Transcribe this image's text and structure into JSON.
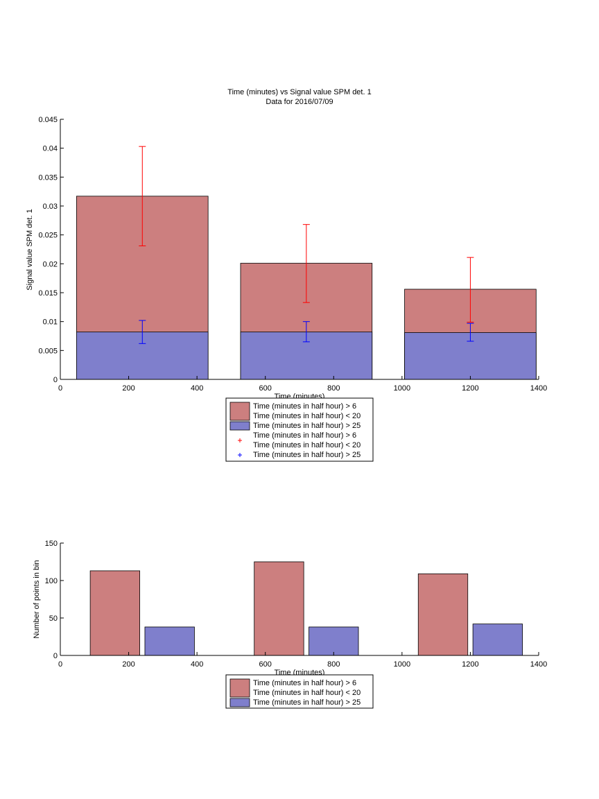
{
  "colors": {
    "bar_red": "#cc7f7f",
    "bar_blue": "#7f7fcc",
    "err_red": "#ff0000",
    "err_blue": "#0000ff",
    "edge": "#000000"
  },
  "chart_data": [
    {
      "type": "bar",
      "title": "Time (minutes) vs Signal value SPM det. 1",
      "subtitle": "Data for 2016/07/09",
      "xlabel": "Time (minutes)",
      "ylabel": "Signal value SPM det. 1",
      "xlim": [
        0,
        1400
      ],
      "ylim": [
        0,
        0.045
      ],
      "xticks": [
        0,
        200,
        400,
        600,
        800,
        1000,
        1200,
        1400
      ],
      "yticks": [
        0,
        0.005,
        0.01,
        0.015,
        0.02,
        0.025,
        0.03,
        0.035,
        0.04,
        0.045
      ],
      "xtick_labels": [
        "0",
        "200",
        "400",
        "600",
        "800",
        "1000",
        "1200",
        "1400"
      ],
      "ytick_labels": [
        "0",
        "0.005",
        "0.01",
        "0.015",
        "0.02",
        "0.025",
        "0.03",
        "0.035",
        "0.04",
        "0.045"
      ],
      "bar_width": 385,
      "series": [
        {
          "name": "Time (minutes in half hour) > 6\nTime (minutes in half hour) < 20",
          "color": "#cc7f7f",
          "x": [
            240,
            720,
            1200
          ],
          "values": [
            0.0317,
            0.0201,
            0.0156
          ]
        },
        {
          "name": "Time (minutes in half hour) > 25",
          "color": "#7f7fcc",
          "x": [
            240,
            720,
            1200
          ],
          "values": [
            0.0082,
            0.0082,
            0.0081
          ]
        }
      ],
      "error_bars": [
        {
          "name": "Time (minutes in half hour) > 6\nTime (minutes in half hour) < 20",
          "color": "#ff0000",
          "x": [
            240,
            720,
            1200
          ],
          "low": [
            0.0231,
            0.0133,
            0.0099
          ],
          "high": [
            0.0403,
            0.0268,
            0.0211
          ]
        },
        {
          "name": "Time (minutes in half hour) > 25",
          "color": "#0000ff",
          "x": [
            240,
            720,
            1200
          ],
          "low": [
            0.0062,
            0.0065,
            0.0066
          ],
          "high": [
            0.0102,
            0.01,
            0.0097
          ]
        }
      ],
      "legend": [
        {
          "kind": "patch",
          "color": "#cc7f7f",
          "lines": [
            "Time (minutes in half hour) > 6",
            "Time (minutes in half hour) < 20"
          ]
        },
        {
          "kind": "patch",
          "color": "#7f7fcc",
          "lines": [
            "Time (minutes in half hour) > 25"
          ]
        },
        {
          "kind": "marker",
          "color": "#ff0000",
          "lines": [
            "Time (minutes in half hour) > 6",
            "Time (minutes in half hour) < 20"
          ]
        },
        {
          "kind": "marker",
          "color": "#0000ff",
          "lines": [
            "Time (minutes in half hour) > 25"
          ]
        }
      ],
      "legend_position": "below"
    },
    {
      "type": "bar",
      "title": "",
      "xlabel": "Time (minutes)",
      "ylabel": "Number of points in bin",
      "xlim": [
        0,
        1400
      ],
      "ylim": [
        0,
        150
      ],
      "xticks": [
        0,
        200,
        400,
        600,
        800,
        1000,
        1200,
        1400
      ],
      "yticks": [
        0,
        50,
        100,
        150
      ],
      "xtick_labels": [
        "0",
        "200",
        "400",
        "600",
        "800",
        "1000",
        "1200",
        "1400"
      ],
      "ytick_labels": [
        "0",
        "50",
        "100",
        "150"
      ],
      "bar_width": 145,
      "series": [
        {
          "name": "Time (minutes in half hour) > 6\nTime (minutes in half hour) < 20",
          "color": "#cc7f7f",
          "x": [
            160,
            640,
            1120
          ],
          "values": [
            113,
            125,
            109
          ]
        },
        {
          "name": "Time (minutes in half hour) > 25",
          "color": "#7f7fcc",
          "x": [
            320,
            800,
            1280
          ],
          "values": [
            38,
            38,
            42
          ]
        }
      ],
      "legend": [
        {
          "kind": "patch",
          "color": "#cc7f7f",
          "lines": [
            "Time (minutes in half hour) > 6",
            "Time (minutes in half hour) < 20"
          ]
        },
        {
          "kind": "patch",
          "color": "#7f7fcc",
          "lines": [
            "Time (minutes in half hour) > 25"
          ]
        }
      ],
      "legend_position": "below"
    }
  ]
}
